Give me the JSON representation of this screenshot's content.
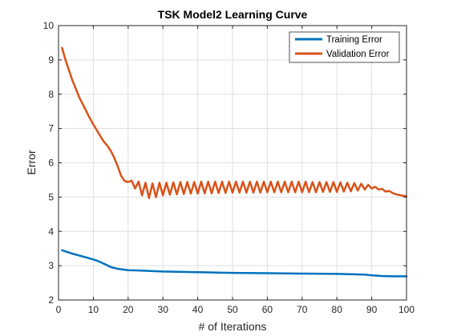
{
  "chart_data": {
    "type": "line",
    "title": "TSK Model2 Learning Curve",
    "xlabel": "# of Iterations",
    "ylabel": "Error",
    "xlim": [
      0,
      100
    ],
    "ylim": [
      2,
      10
    ],
    "xticks": [
      0,
      10,
      20,
      30,
      40,
      50,
      60,
      70,
      80,
      90,
      100
    ],
    "yticks": [
      2,
      3,
      4,
      5,
      6,
      7,
      8,
      9,
      10
    ],
    "grid": true,
    "legend_position": "top-right",
    "series": [
      {
        "name": "Training Error",
        "color": "#0072BD",
        "x": [
          1,
          4,
          8,
          11,
          13,
          15,
          17,
          20,
          23,
          30,
          40,
          50,
          60,
          70,
          80,
          85,
          88,
          90,
          93,
          96,
          100
        ],
        "y": [
          3.45,
          3.35,
          3.24,
          3.15,
          3.06,
          2.96,
          2.91,
          2.87,
          2.86,
          2.83,
          2.81,
          2.79,
          2.78,
          2.77,
          2.76,
          2.75,
          2.74,
          2.72,
          2.7,
          2.69,
          2.69
        ]
      },
      {
        "name": "Validation Error",
        "color": "#D95319",
        "x": [
          1,
          2,
          3,
          4,
          5,
          6,
          7,
          8,
          9,
          10,
          11,
          12,
          13,
          14,
          15,
          16,
          17,
          18,
          19,
          20,
          21,
          22,
          23,
          24,
          25,
          26,
          27,
          28,
          29,
          30,
          31,
          32,
          33,
          34,
          35,
          36,
          37,
          38,
          39,
          40,
          41,
          42,
          43,
          44,
          45,
          46,
          47,
          48,
          49,
          50,
          51,
          52,
          53,
          54,
          55,
          56,
          57,
          58,
          59,
          60,
          61,
          62,
          63,
          64,
          65,
          66,
          67,
          68,
          69,
          70,
          71,
          72,
          73,
          74,
          75,
          76,
          77,
          78,
          79,
          80,
          81,
          82,
          83,
          84,
          85,
          86,
          87,
          88,
          89,
          90,
          91,
          92,
          93,
          94,
          95,
          96,
          97,
          98,
          99,
          100
        ],
        "y": [
          9.35,
          9.0,
          8.7,
          8.4,
          8.15,
          7.9,
          7.7,
          7.5,
          7.3,
          7.12,
          6.95,
          6.78,
          6.62,
          6.5,
          6.35,
          6.15,
          5.9,
          5.62,
          5.47,
          5.44,
          5.48,
          5.25,
          5.45,
          5.05,
          5.42,
          4.97,
          5.4,
          5.0,
          5.42,
          5.05,
          5.42,
          5.07,
          5.43,
          5.08,
          5.44,
          5.09,
          5.44,
          5.1,
          5.44,
          5.1,
          5.45,
          5.11,
          5.45,
          5.11,
          5.45,
          5.12,
          5.45,
          5.12,
          5.45,
          5.13,
          5.45,
          5.13,
          5.45,
          5.13,
          5.45,
          5.13,
          5.45,
          5.13,
          5.45,
          5.14,
          5.45,
          5.14,
          5.45,
          5.14,
          5.45,
          5.14,
          5.45,
          5.14,
          5.45,
          5.14,
          5.45,
          5.14,
          5.44,
          5.14,
          5.44,
          5.15,
          5.44,
          5.15,
          5.44,
          5.15,
          5.43,
          5.16,
          5.42,
          5.17,
          5.41,
          5.19,
          5.39,
          5.22,
          5.36,
          5.25,
          5.3,
          5.22,
          5.24,
          5.16,
          5.18,
          5.12,
          5.08,
          5.06,
          5.04,
          5.02
        ]
      }
    ]
  }
}
